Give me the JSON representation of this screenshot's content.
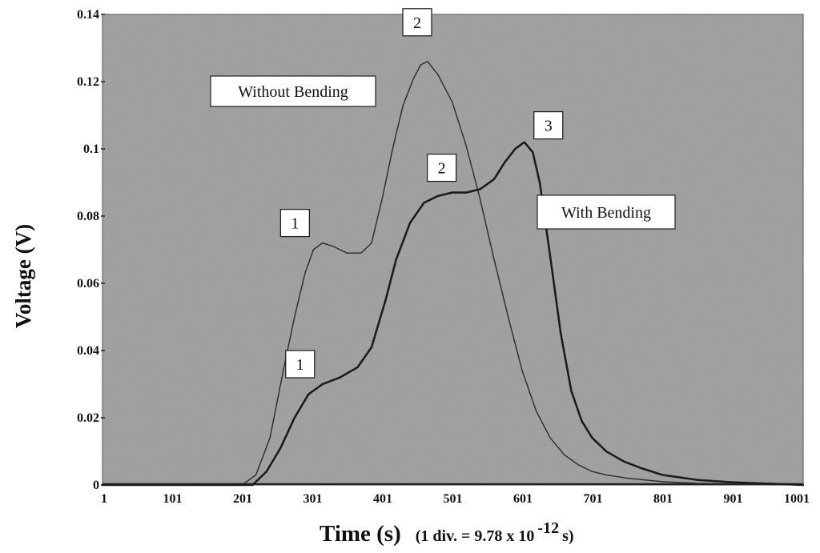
{
  "chart_data": {
    "type": "line",
    "xlabel": "Time (s)",
    "xlabel_note_prefix": "(1 div. = 9.78 x 10",
    "xlabel_note_exp": "-12",
    "xlabel_note_suffix": " s)",
    "ylabel": "Voltage (V)",
    "xlim": [
      1,
      1001
    ],
    "ylim": [
      0,
      0.14
    ],
    "x_ticks": [
      "1",
      "101",
      "201",
      "301",
      "401",
      "501",
      "601",
      "701",
      "801",
      "901",
      "1001"
    ],
    "y_ticks": [
      "0",
      "0.02",
      "0.04",
      "0.06",
      "0.08",
      "0.1",
      "0.12",
      "0.14"
    ],
    "grid": false,
    "plot_background": "#9d9d9d",
    "series": [
      {
        "name": "Without Bending",
        "color": "#2a2a2a",
        "style": "solid",
        "points": [
          [
            1,
            0
          ],
          [
            200,
            0
          ],
          [
            220,
            0.003
          ],
          [
            240,
            0.014
          ],
          [
            260,
            0.035
          ],
          [
            275,
            0.05
          ],
          [
            290,
            0.063
          ],
          [
            302,
            0.07
          ],
          [
            315,
            0.072
          ],
          [
            330,
            0.071
          ],
          [
            350,
            0.069
          ],
          [
            370,
            0.069
          ],
          [
            385,
            0.072
          ],
          [
            400,
            0.085
          ],
          [
            415,
            0.1
          ],
          [
            430,
            0.113
          ],
          [
            445,
            0.121
          ],
          [
            455,
            0.125
          ],
          [
            465,
            0.126
          ],
          [
            480,
            0.122
          ],
          [
            500,
            0.114
          ],
          [
            520,
            0.101
          ],
          [
            540,
            0.085
          ],
          [
            560,
            0.067
          ],
          [
            580,
            0.05
          ],
          [
            600,
            0.034
          ],
          [
            620,
            0.022
          ],
          [
            640,
            0.014
          ],
          [
            660,
            0.009
          ],
          [
            680,
            0.006
          ],
          [
            700,
            0.004
          ],
          [
            720,
            0.003
          ],
          [
            750,
            0.002
          ],
          [
            800,
            0.001
          ],
          [
            850,
            0.0005
          ],
          [
            1001,
            0
          ]
        ]
      },
      {
        "name": "With Bending",
        "color": "#1a1a1a",
        "style": "dotted",
        "points": [
          [
            1,
            0
          ],
          [
            215,
            0
          ],
          [
            235,
            0.004
          ],
          [
            255,
            0.011
          ],
          [
            275,
            0.02
          ],
          [
            295,
            0.027
          ],
          [
            315,
            0.03
          ],
          [
            340,
            0.032
          ],
          [
            365,
            0.035
          ],
          [
            385,
            0.041
          ],
          [
            405,
            0.055
          ],
          [
            420,
            0.067
          ],
          [
            440,
            0.078
          ],
          [
            460,
            0.084
          ],
          [
            480,
            0.086
          ],
          [
            500,
            0.087
          ],
          [
            520,
            0.087
          ],
          [
            540,
            0.088
          ],
          [
            560,
            0.091
          ],
          [
            575,
            0.096
          ],
          [
            590,
            0.1
          ],
          [
            603,
            0.102
          ],
          [
            615,
            0.099
          ],
          [
            625,
            0.09
          ],
          [
            640,
            0.068
          ],
          [
            655,
            0.045
          ],
          [
            670,
            0.028
          ],
          [
            685,
            0.019
          ],
          [
            700,
            0.014
          ],
          [
            720,
            0.01
          ],
          [
            745,
            0.007
          ],
          [
            770,
            0.005
          ],
          [
            800,
            0.003
          ],
          [
            850,
            0.0015
          ],
          [
            900,
            0.0008
          ],
          [
            1001,
            0
          ]
        ]
      }
    ],
    "point_labels": [
      {
        "text": "1",
        "series": "Without Bending",
        "x": 302,
        "y": 0.072
      },
      {
        "text": "2",
        "series": "Without Bending",
        "x": 465,
        "y": 0.126
      },
      {
        "text": "1",
        "series": "With Bending",
        "x": 315,
        "y": 0.03
      },
      {
        "text": "2",
        "series": "With Bending",
        "x": 500,
        "y": 0.087
      },
      {
        "text": "3",
        "series": "With Bending",
        "x": 603,
        "y": 0.102
      }
    ],
    "legend_labels": [
      {
        "text": "Without Bending",
        "series": "Without Bending",
        "position": "upper-left"
      },
      {
        "text": "With Bending",
        "series": "With Bending",
        "position": "right"
      }
    ]
  }
}
